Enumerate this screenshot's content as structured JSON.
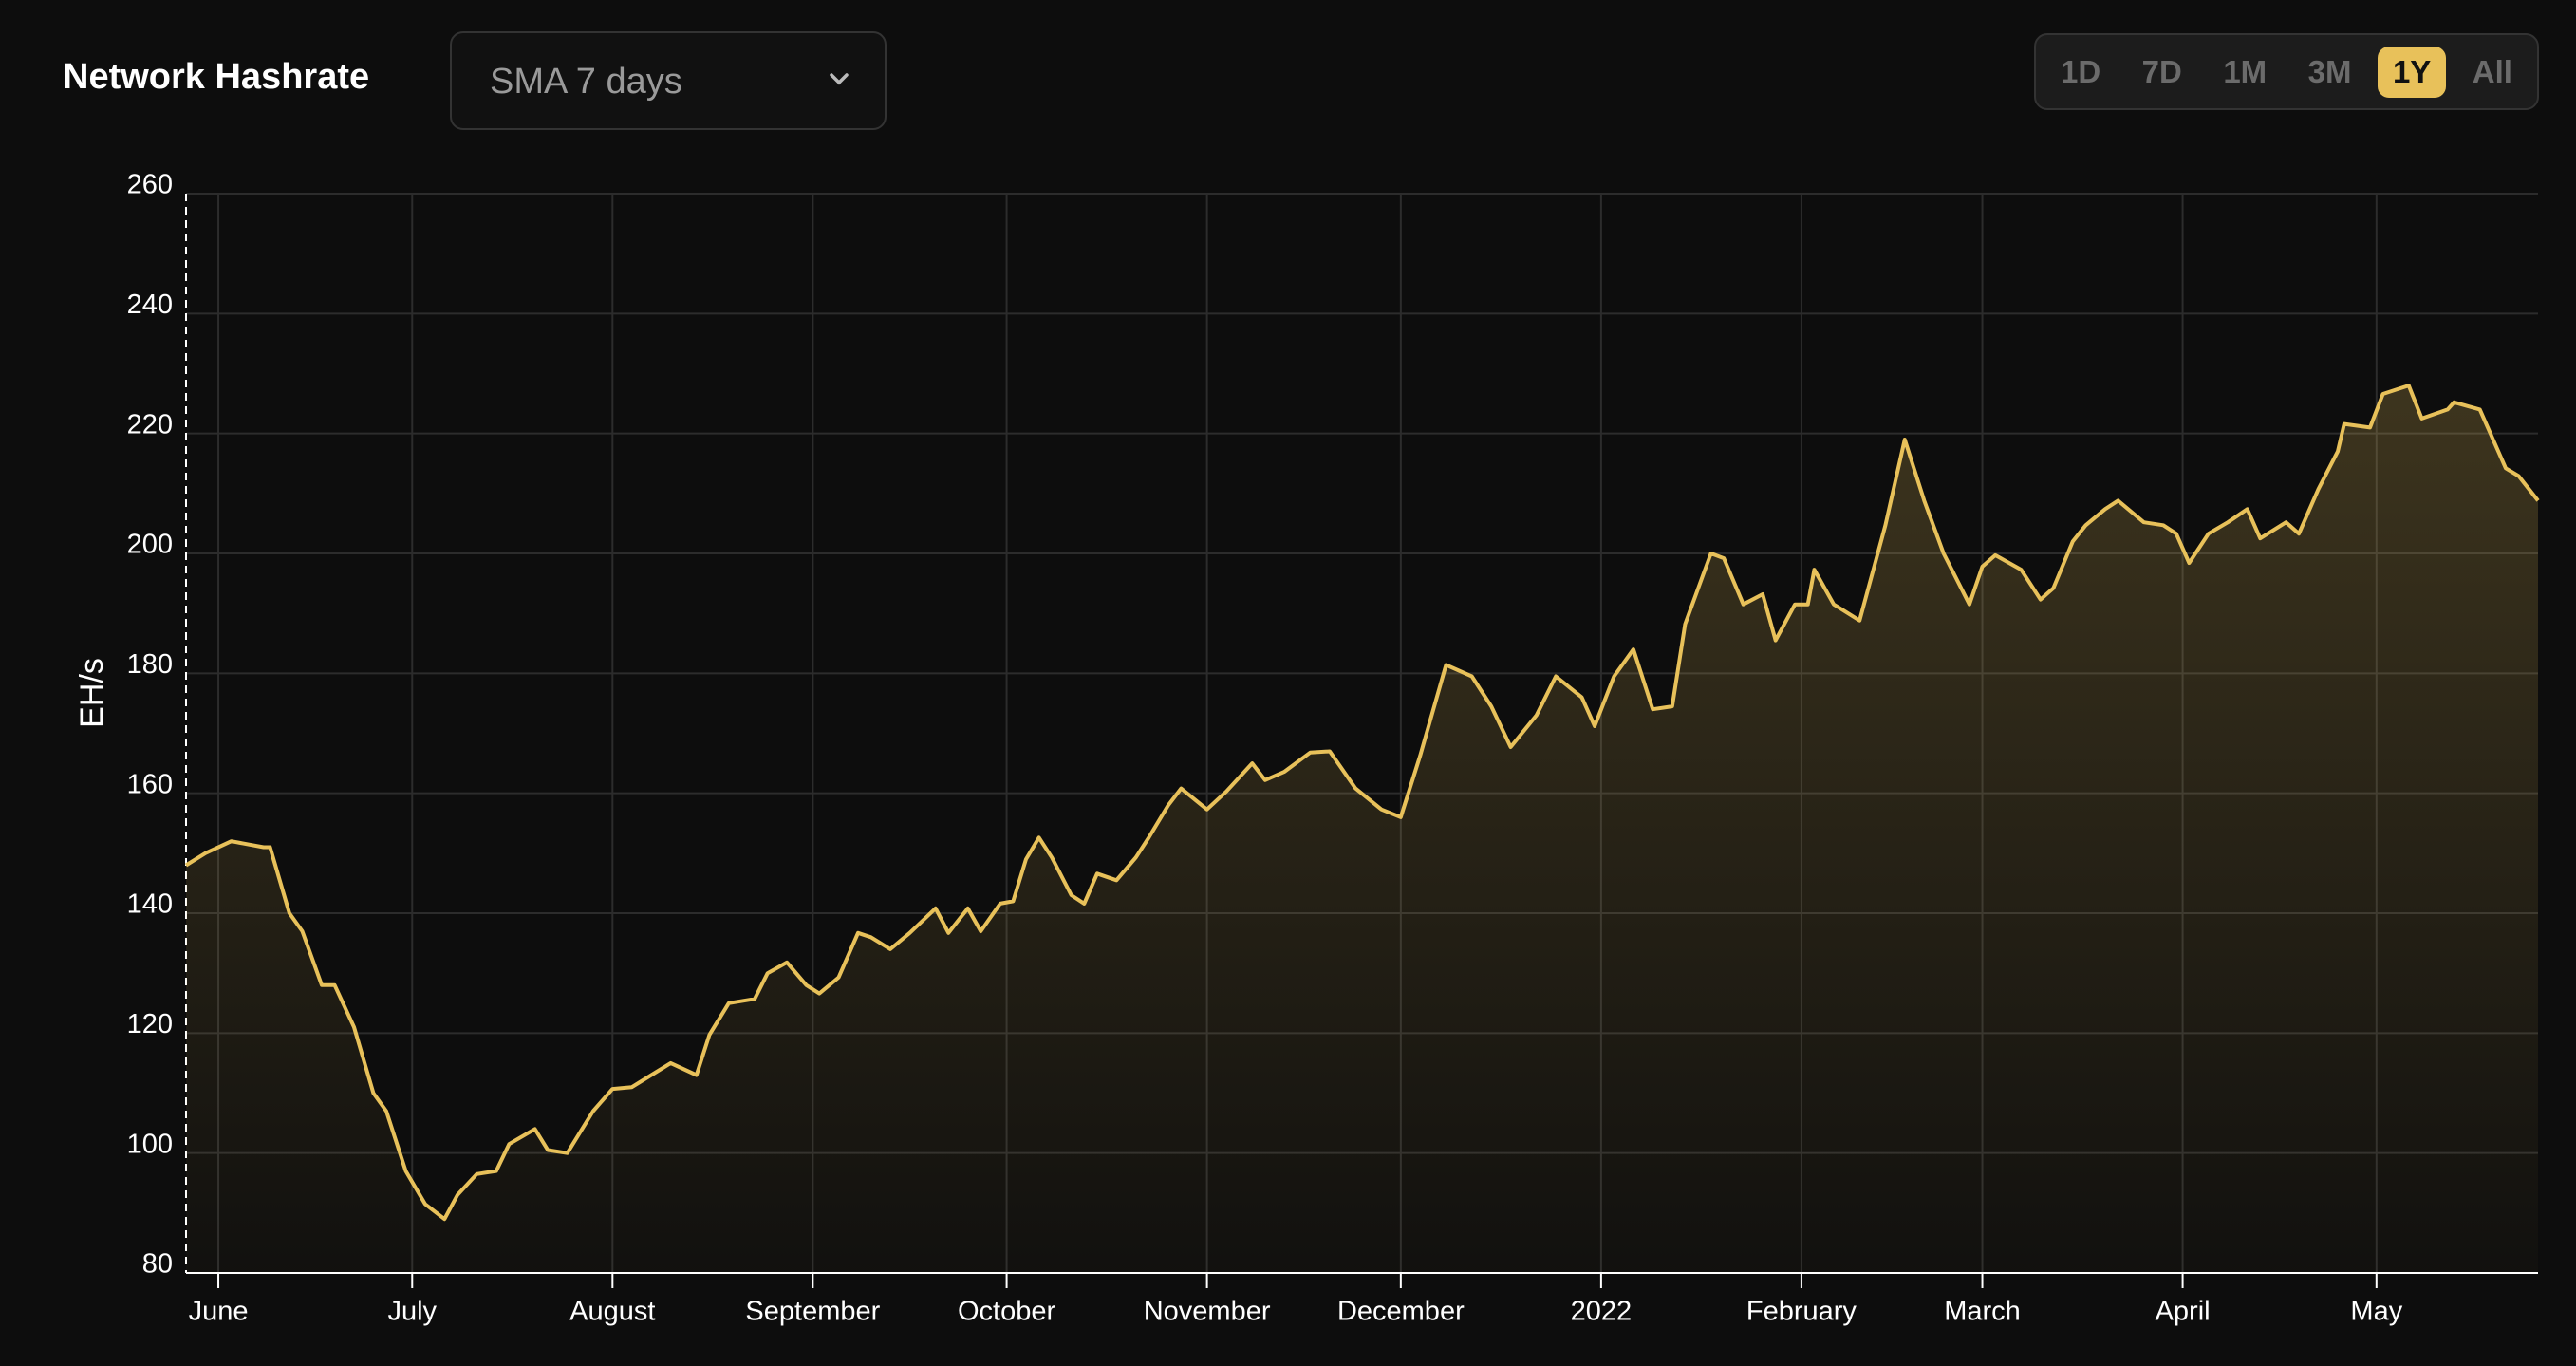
{
  "header": {
    "title": "Network Hashrate",
    "dropdown": "SMA 7 days",
    "ranges": [
      "1D",
      "7D",
      "1M",
      "3M",
      "1Y",
      "All"
    ],
    "active_range": 4
  },
  "chart_data": {
    "type": "line",
    "ylabel": "EH/s",
    "color": "#e8c15a",
    "grid": true,
    "xlim": [
      0,
      364
    ],
    "ylim": [
      80,
      260
    ],
    "yticks": [
      80,
      100,
      120,
      140,
      160,
      180,
      200,
      220,
      240,
      260
    ],
    "xticks": [
      {
        "value": 5,
        "label": "June"
      },
      {
        "value": 35,
        "label": "July"
      },
      {
        "value": 66,
        "label": "August"
      },
      {
        "value": 97,
        "label": "September"
      },
      {
        "value": 127,
        "label": "October"
      },
      {
        "value": 158,
        "label": "November"
      },
      {
        "value": 188,
        "label": "December"
      },
      {
        "value": 219,
        "label": "2022"
      },
      {
        "value": 250,
        "label": "February"
      },
      {
        "value": 278,
        "label": "March"
      },
      {
        "value": 309,
        "label": "April"
      },
      {
        "value": 339,
        "label": "May"
      }
    ],
    "x": [
      0,
      3,
      7,
      12,
      13,
      16,
      18,
      21,
      23,
      26,
      29,
      31,
      34,
      37,
      40,
      42,
      45,
      48,
      50,
      54,
      56,
      59,
      63,
      66,
      69,
      72,
      75,
      79,
      81,
      84,
      88,
      90,
      93,
      96,
      98,
      101,
      104,
      106,
      109,
      112,
      116,
      118,
      121,
      123,
      126,
      128,
      130,
      132,
      134,
      137,
      139,
      141,
      144,
      147,
      149,
      152,
      154,
      158,
      161,
      165,
      167,
      170,
      174,
      177,
      181,
      185,
      188,
      191,
      195,
      199,
      202,
      205,
      209,
      212,
      216,
      218,
      221,
      224,
      227,
      230,
      232,
      236,
      238,
      241,
      244,
      246,
      249,
      251,
      252,
      255,
      259,
      263,
      266,
      269,
      272,
      276,
      278,
      280,
      284,
      287,
      289,
      292,
      294,
      297,
      299,
      303,
      306,
      308,
      310,
      313,
      316,
      319,
      321,
      325,
      327,
      330,
      333,
      334,
      338,
      340,
      344,
      346,
      350,
      351,
      355,
      359,
      361,
      364
    ],
    "series": [
      {
        "name": "Network Hashrate",
        "values": [
          148,
          150,
          152,
          151,
          151,
          140,
          137,
          128,
          128,
          121,
          110,
          107,
          97,
          91.5,
          89,
          93,
          96.5,
          97,
          101.5,
          104,
          100.5,
          100,
          107,
          110.7,
          111,
          113,
          115,
          113,
          119.7,
          125,
          125.7,
          130,
          131.8,
          128,
          126.6,
          129.3,
          136.7,
          136,
          134,
          136.7,
          140.8,
          136.7,
          140.8,
          137,
          141.6,
          142,
          149,
          152.6,
          149.3,
          143,
          141.6,
          146.6,
          145.5,
          149.3,
          152.6,
          158,
          160.8,
          157.3,
          160.3,
          165,
          162.2,
          163.6,
          166.8,
          167,
          160.8,
          157.3,
          156,
          166.3,
          181.4,
          179.5,
          174.5,
          167.7,
          173,
          179.5,
          176,
          171.2,
          179.5,
          184,
          174,
          174.5,
          188.2,
          200,
          199.2,
          191.5,
          193.2,
          185.5,
          191.5,
          191.5,
          197.3,
          191.5,
          188.8,
          204.7,
          219,
          208.8,
          200,
          191.5,
          197.8,
          199.7,
          197.3,
          192.3,
          194.2,
          202,
          204.7,
          207.4,
          208.8,
          205.2,
          204.7,
          203.3,
          198.4,
          203.3,
          205.2,
          207.4,
          202.5,
          205.2,
          203.3,
          210.7,
          217,
          221.6,
          221,
          226.6,
          228,
          222.5,
          224,
          225.2,
          224,
          214.2,
          212.9,
          208.8
        ]
      }
    ]
  }
}
